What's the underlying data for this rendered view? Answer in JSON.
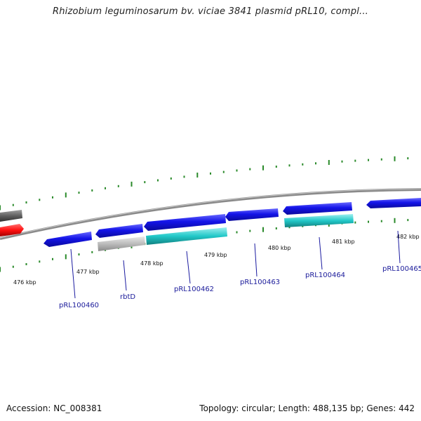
{
  "title": "Rhizobium leguminosarum bv. viciae 3841 plasmid pRL10, compl...",
  "footer": {
    "accession": "Accession: NC_008381",
    "summary": "Topology: circular; Length: 488,135 bp; Genes: 442"
  },
  "colors": {
    "cds_forward": "#1010e0",
    "cds_reverse": "#1010e0",
    "highlight": "#22c8c8",
    "grey": "#b8b8b8",
    "red": "#ff1010",
    "dark_grey": "#606060",
    "backbone": "#808080",
    "tick": "#2a8a2a",
    "label": "#1a1a9a"
  },
  "scale_labels": [
    "476 kbp",
    "477 kbp",
    "478 kbp",
    "479 kbp",
    "480 kbp",
    "481 kbp",
    "482 kbp"
  ],
  "gene_labels": [
    "pRL100460",
    "rbtD",
    "pRL100462",
    "pRL100463",
    "pRL100464",
    "pRL100465"
  ]
}
